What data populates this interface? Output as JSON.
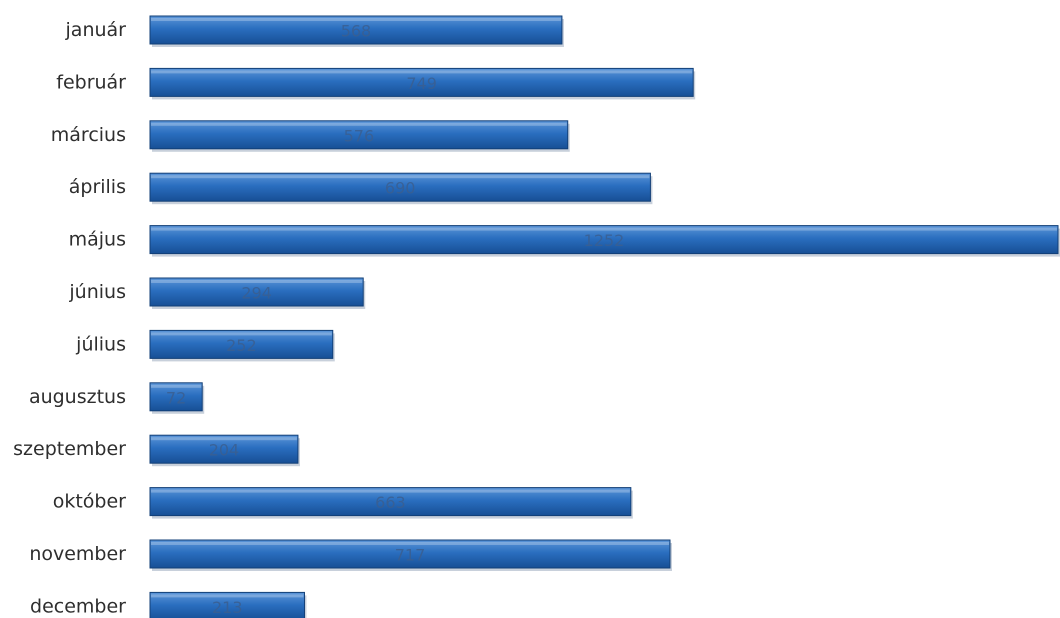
{
  "chart_data": {
    "type": "bar",
    "orientation": "horizontal",
    "categories": [
      "január",
      "február",
      "március",
      "április",
      "május",
      "június",
      "július",
      "augusztus",
      "szeptember",
      "október",
      "november",
      "december"
    ],
    "values": [
      568,
      749,
      576,
      690,
      1252,
      294,
      252,
      72,
      204,
      663,
      717,
      213
    ],
    "value_labels": [
      "568",
      "749",
      "576",
      "690",
      "1252",
      "294",
      "252",
      "72",
      "204",
      "663",
      "717",
      "213"
    ],
    "title": "",
    "xlabel": "",
    "ylabel": "",
    "xlim": [
      0,
      1252
    ],
    "grid": false,
    "legend": "none",
    "colors": {
      "bar_top": "#5b95d8",
      "bar_mid": "#2a6ebf",
      "bar_bottom": "#174f95",
      "bar_edge": "#123f77",
      "shadow": "#9aa9bd"
    }
  }
}
